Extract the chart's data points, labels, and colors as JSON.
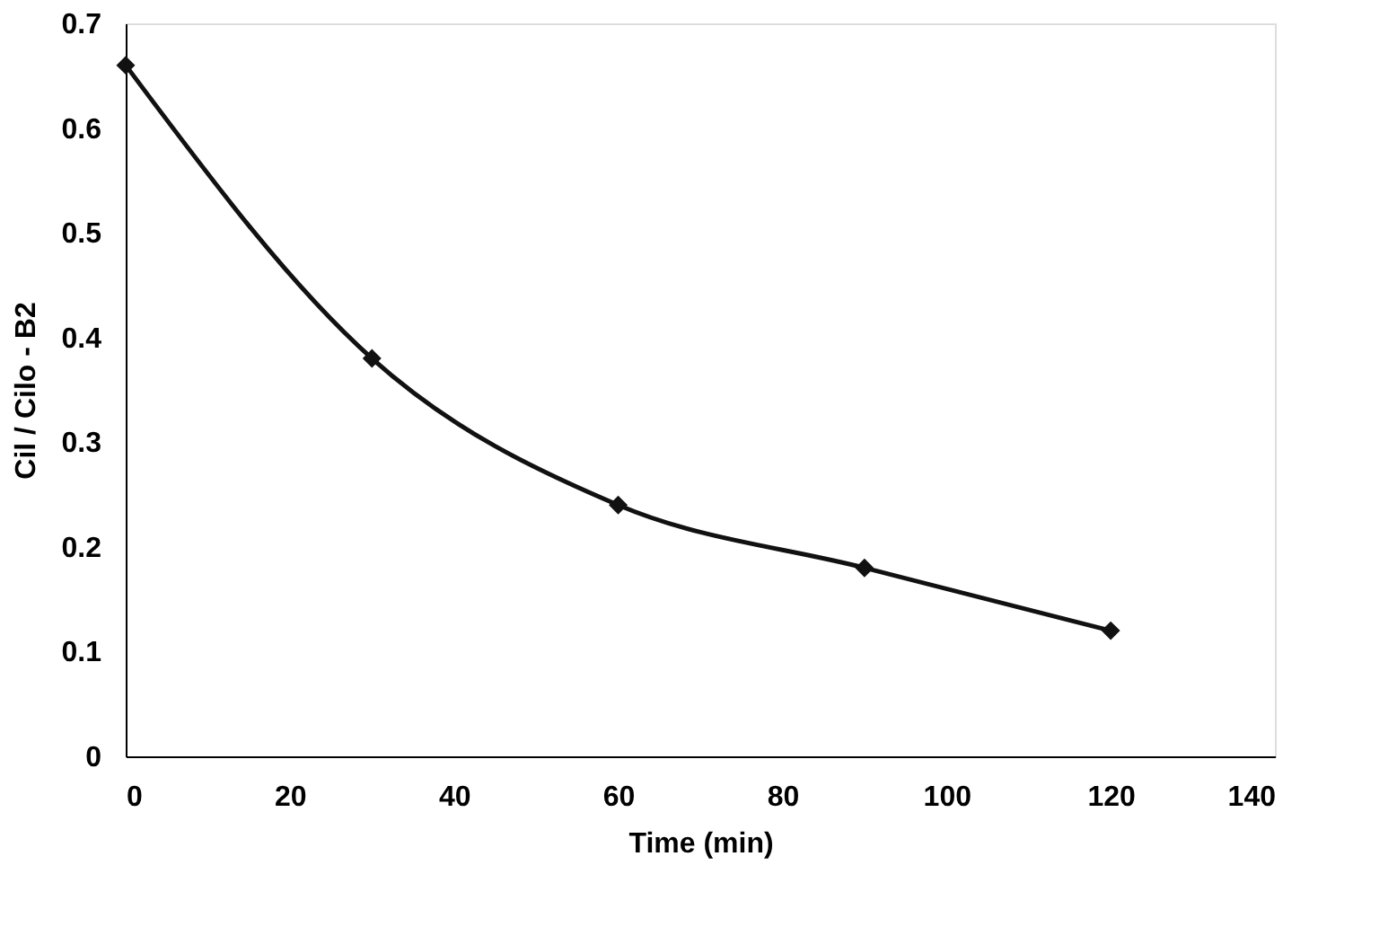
{
  "chart_data": {
    "type": "line",
    "xlabel": "Time (min)",
    "ylabel": "Cil / Cilo - B2",
    "x": [
      0,
      30,
      60,
      90,
      120
    ],
    "series": [
      {
        "color": "#111111",
        "values": [
          0.66,
          0.38,
          0.24,
          0.18,
          0.12
        ]
      }
    ],
    "xlim": [
      0,
      140
    ],
    "xticks": [
      0,
      20,
      40,
      60,
      80,
      100,
      120,
      140
    ],
    "ylim": [
      0,
      0.7
    ],
    "yticks": [
      0,
      0.1,
      0.2,
      0.3,
      0.4,
      0.5,
      0.6,
      0.7
    ],
    "marker": "diamond",
    "line_style": "solid",
    "grid": false
  }
}
